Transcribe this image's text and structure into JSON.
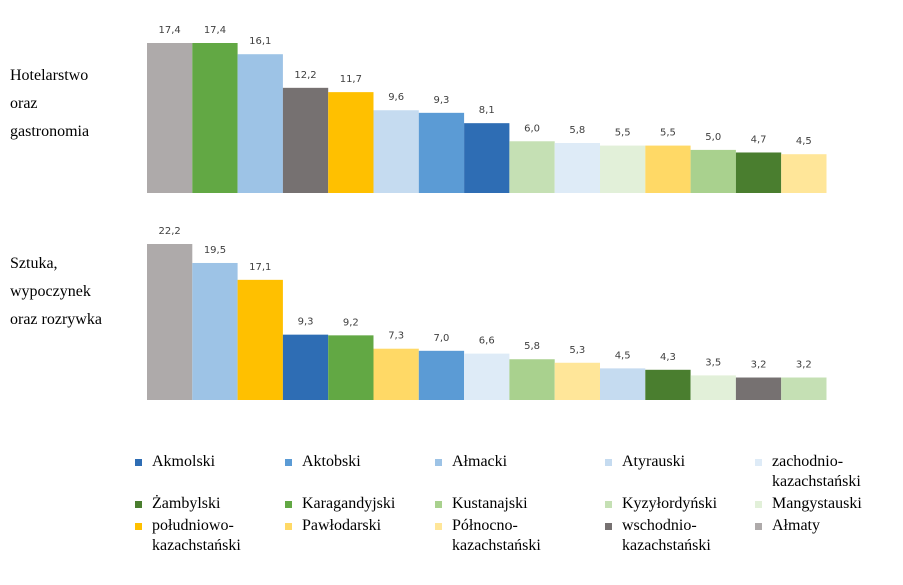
{
  "chart_data": [
    {
      "type": "bar",
      "title": "Hotelarstwo oraz gastronomia",
      "categories": [
        "Ałmaty",
        "Karagandyjski",
        "Ałmacki",
        "wschodnio-kazachstański",
        "południowo-kazachstański",
        "Atyrauski",
        "Aktobski",
        "Akmolski",
        "Kyzyłordyński",
        "zachodnio-kazachstański",
        "Mangystauski",
        "Pawłodarski",
        "Kustanajski",
        "Żambylski",
        "Północno-kazachstański"
      ],
      "values": [
        17.4,
        17.4,
        16.1,
        12.2,
        11.7,
        9.6,
        9.3,
        8.1,
        6.0,
        5.8,
        5.5,
        5.5,
        5.0,
        4.7,
        4.5
      ],
      "value_labels": [
        "17,4",
        "17,4",
        "16,1",
        "12,2",
        "11,7",
        "9,6",
        "9,3",
        "8,1",
        "6,0",
        "5,8",
        "5,5",
        "5,5",
        "5,0",
        "4,7",
        "4,5"
      ]
    },
    {
      "type": "bar",
      "title": "Sztuka, wypoczynek oraz rozrywka",
      "categories": [
        "Ałmaty",
        "Ałmacki",
        "południowo-kazachstański",
        "Akmolski",
        "Karagandyjski",
        "Pawłodarski",
        "Aktobski",
        "zachodnio-kazachstański",
        "Kustanajski",
        "Północno-kazachstański",
        "Atyrauski",
        "Żambylski",
        "Mangystauski",
        "wschodnio-kazachstański",
        "Kyzyłordyński"
      ],
      "values": [
        22.2,
        19.5,
        17.1,
        9.3,
        9.2,
        7.3,
        7.0,
        6.6,
        5.8,
        5.3,
        4.5,
        4.3,
        3.5,
        3.2,
        3.2
      ],
      "value_labels": [
        "22,2",
        "19,5",
        "17,1",
        "9,3",
        "9,2",
        "7,3",
        "7,0",
        "6,6",
        "5,8",
        "5,3",
        "4,5",
        "4,3",
        "3,5",
        "3,2",
        "3,2"
      ]
    }
  ],
  "legend": [
    {
      "name": "Akmolski",
      "color": "#2e6db4"
    },
    {
      "name": "Aktobski",
      "color": "#5b9bd5"
    },
    {
      "name": "Ałmacki",
      "color": "#9dc3e6"
    },
    {
      "name": "Atyrauski",
      "color": "#c5dbf0"
    },
    {
      "name": "zachodnio-kazachstański",
      "color": "#deebf7"
    },
    {
      "name": "Żambylski",
      "color": "#4a7e2f"
    },
    {
      "name": "Karagandyjski",
      "color": "#62a844"
    },
    {
      "name": "Kustanajski",
      "color": "#a9d18e"
    },
    {
      "name": "Kyzyłordyński",
      "color": "#c5e0b4"
    },
    {
      "name": "Mangystauski",
      "color": "#e2f0d9"
    },
    {
      "name": "południowo-kazachstański",
      "color": "#ffc000"
    },
    {
      "name": "Pawłodarski",
      "color": "#ffd966"
    },
    {
      "name": "Północno-kazachstański",
      "color": "#ffe699"
    },
    {
      "name": "wschodnio-kazachstański",
      "color": "#767171"
    },
    {
      "name": "Ałmaty",
      "color": "#aeaaaa"
    }
  ]
}
